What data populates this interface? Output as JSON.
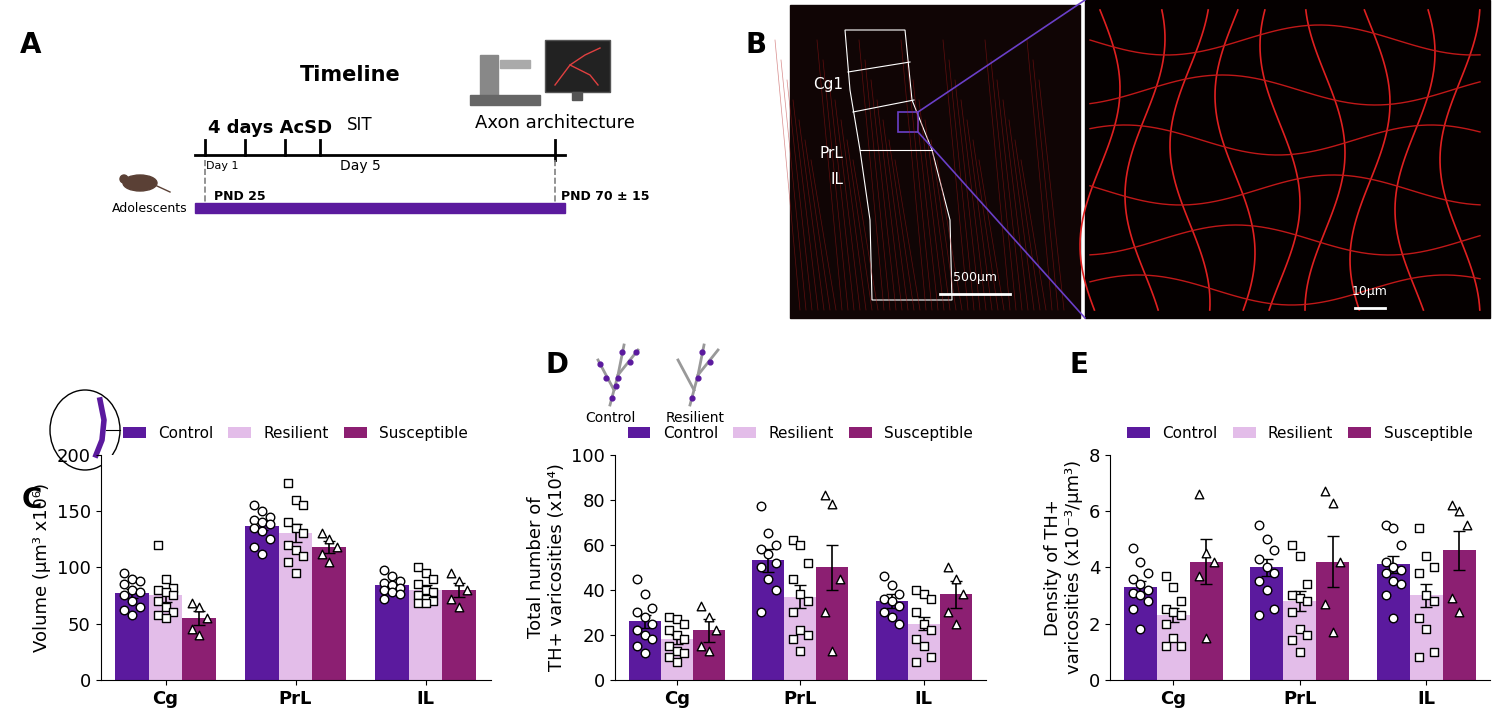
{
  "panel_labels": [
    "A",
    "B",
    "C",
    "D",
    "E"
  ],
  "timeline": {
    "title": "Timeline",
    "treatment": "4 days AcSD",
    "test": "SIT",
    "end": "Axon architecture",
    "day_start": "Day 1",
    "day_test": "Day 5",
    "age_start": "PND 25",
    "age_end": "PND 70 ± 15",
    "subject": "Adolescents"
  },
  "histology": {
    "regions": [
      "Cg1",
      "PrL",
      "IL"
    ],
    "scale_bars": [
      "500µm",
      "10µm"
    ]
  },
  "schematic": {
    "labels": [
      "Control",
      "Resilient"
    ]
  },
  "chart_data": [
    {
      "type": "bar",
      "categories": [
        "Cg",
        "PrL",
        "IL"
      ],
      "y_label": "Volume (µm³ x10⁶)",
      "ylim": [
        0,
        200
      ],
      "yticks": [
        0,
        50,
        100,
        150,
        200
      ],
      "legend": "lower center",
      "series": [
        {
          "name": "Control",
          "color": "#5b1a9e",
          "marker": "circle",
          "values": [
            77,
            137,
            84
          ],
          "errors": [
            4,
            4,
            3
          ],
          "points": [
            [
              95,
              90,
              88,
              85,
              80,
              78,
              75,
              70,
              65,
              62,
              58
            ],
            [
              155,
              150,
              145,
              142,
              140,
              138,
              135,
              132,
              125,
              118,
              112
            ],
            [
              98,
              92,
              88,
              86,
              84,
              82,
              80,
              78,
              76,
              72
            ]
          ]
        },
        {
          "name": "Resilient",
          "color": "#e3bde9",
          "marker": "square",
          "values": [
            75,
            130,
            80
          ],
          "errors": [
            6,
            8,
            4
          ],
          "points": [
            [
              120,
              90,
              82,
              80,
              78,
              75,
              70,
              65,
              60,
              58,
              55
            ],
            [
              175,
              160,
              155,
              140,
              135,
              130,
              120,
              115,
              110,
              105,
              95
            ],
            [
              100,
              95,
              90,
              85,
              80,
              78,
              75,
              72,
              70,
              68,
              68
            ]
          ]
        },
        {
          "name": "Susceptible",
          "color": "#8c1f72",
          "marker": "triangle",
          "values": [
            55,
            118,
            80
          ],
          "errors": [
            6,
            5,
            6
          ],
          "points": [
            [
              68,
              65,
              55,
              45,
              40
            ],
            [
              130,
              125,
              118,
              112,
              105
            ],
            [
              95,
              88,
              80,
              72,
              65
            ]
          ]
        }
      ]
    },
    {
      "type": "bar",
      "categories": [
        "Cg",
        "PrL",
        "IL"
      ],
      "y_label": "Total number of\nTH+ varicosities (x10⁴)",
      "ylim": [
        0,
        100
      ],
      "yticks": [
        0,
        20,
        40,
        60,
        80,
        100
      ],
      "legend": "lower center",
      "series": [
        {
          "name": "Control",
          "color": "#5b1a9e",
          "marker": "circle",
          "values": [
            26,
            53,
            35
          ],
          "errors": [
            3,
            5,
            3
          ],
          "points": [
            [
              45,
              38,
              32,
              30,
              28,
              25,
              22,
              20,
              18,
              15,
              12
            ],
            [
              77,
              65,
              60,
              58,
              56,
              52,
              50,
              45,
              40,
              30
            ],
            [
              46,
              42,
              38,
              36,
              35,
              33,
              30,
              28,
              25
            ]
          ]
        },
        {
          "name": "Resilient",
          "color": "#e3bde9",
          "marker": "square",
          "values": [
            18,
            37,
            25
          ],
          "errors": [
            2,
            5,
            3
          ],
          "points": [
            [
              28,
              27,
              25,
              22,
              20,
              18,
              15,
              13,
              12,
              10,
              8
            ],
            [
              62,
              60,
              52,
              45,
              38,
              35,
              30,
              22,
              20,
              18,
              13
            ],
            [
              40,
              38,
              36,
              30,
              25,
              22,
              18,
              15,
              10,
              8
            ]
          ]
        },
        {
          "name": "Susceptible",
          "color": "#8c1f72",
          "marker": "triangle",
          "values": [
            22,
            50,
            38
          ],
          "errors": [
            5,
            10,
            6
          ],
          "points": [
            [
              33,
              28,
              22,
              15,
              13
            ],
            [
              82,
              78,
              45,
              30,
              13
            ],
            [
              50,
              45,
              38,
              30,
              25
            ]
          ]
        }
      ]
    },
    {
      "type": "bar",
      "categories": [
        "Cg",
        "PrL",
        "IL"
      ],
      "y_label": "Density of TH+\nvaricosities (x10⁻³/µm³)",
      "ylim": [
        0,
        8
      ],
      "yticks": [
        0,
        2,
        4,
        6,
        8
      ],
      "legend": "lower center",
      "series": [
        {
          "name": "Control",
          "color": "#5b1a9e",
          "marker": "circle",
          "values": [
            3.3,
            4.0,
            4.1
          ],
          "errors": [
            0.2,
            0.3,
            0.3
          ],
          "points": [
            [
              4.7,
              4.2,
              3.8,
              3.6,
              3.4,
              3.2,
              3.1,
              3.0,
              2.8,
              2.5,
              1.8
            ],
            [
              5.5,
              5.0,
              4.6,
              4.3,
              4.0,
              3.8,
              3.5,
              3.2,
              2.5,
              2.3
            ],
            [
              5.5,
              5.4,
              4.8,
              4.2,
              4.0,
              3.9,
              3.8,
              3.5,
              3.4,
              3.0,
              2.2
            ]
          ]
        },
        {
          "name": "Resilient",
          "color": "#e3bde9",
          "marker": "square",
          "values": [
            2.3,
            2.8,
            3.0
          ],
          "errors": [
            0.25,
            0.35,
            0.4
          ],
          "points": [
            [
              3.7,
              3.3,
              2.8,
              2.5,
              2.4,
              2.3,
              2.0,
              1.5,
              1.2,
              1.2
            ],
            [
              4.8,
              4.4,
              3.4,
              3.0,
              2.9,
              2.8,
              2.4,
              1.8,
              1.6,
              1.4,
              1.0
            ],
            [
              5.4,
              4.4,
              4.0,
              3.8,
              3.0,
              2.8,
              2.2,
              1.8,
              1.0,
              0.8
            ]
          ]
        },
        {
          "name": "Susceptible",
          "color": "#8c1f72",
          "marker": "triangle",
          "values": [
            4.2,
            4.2,
            4.6
          ],
          "errors": [
            0.8,
            0.9,
            0.7
          ],
          "points": [
            [
              6.6,
              4.5,
              4.2,
              3.7,
              1.5
            ],
            [
              6.7,
              6.3,
              4.2,
              2.7,
              1.7
            ],
            [
              6.2,
              6.0,
              5.5,
              2.9,
              2.4
            ]
          ]
        }
      ]
    }
  ]
}
